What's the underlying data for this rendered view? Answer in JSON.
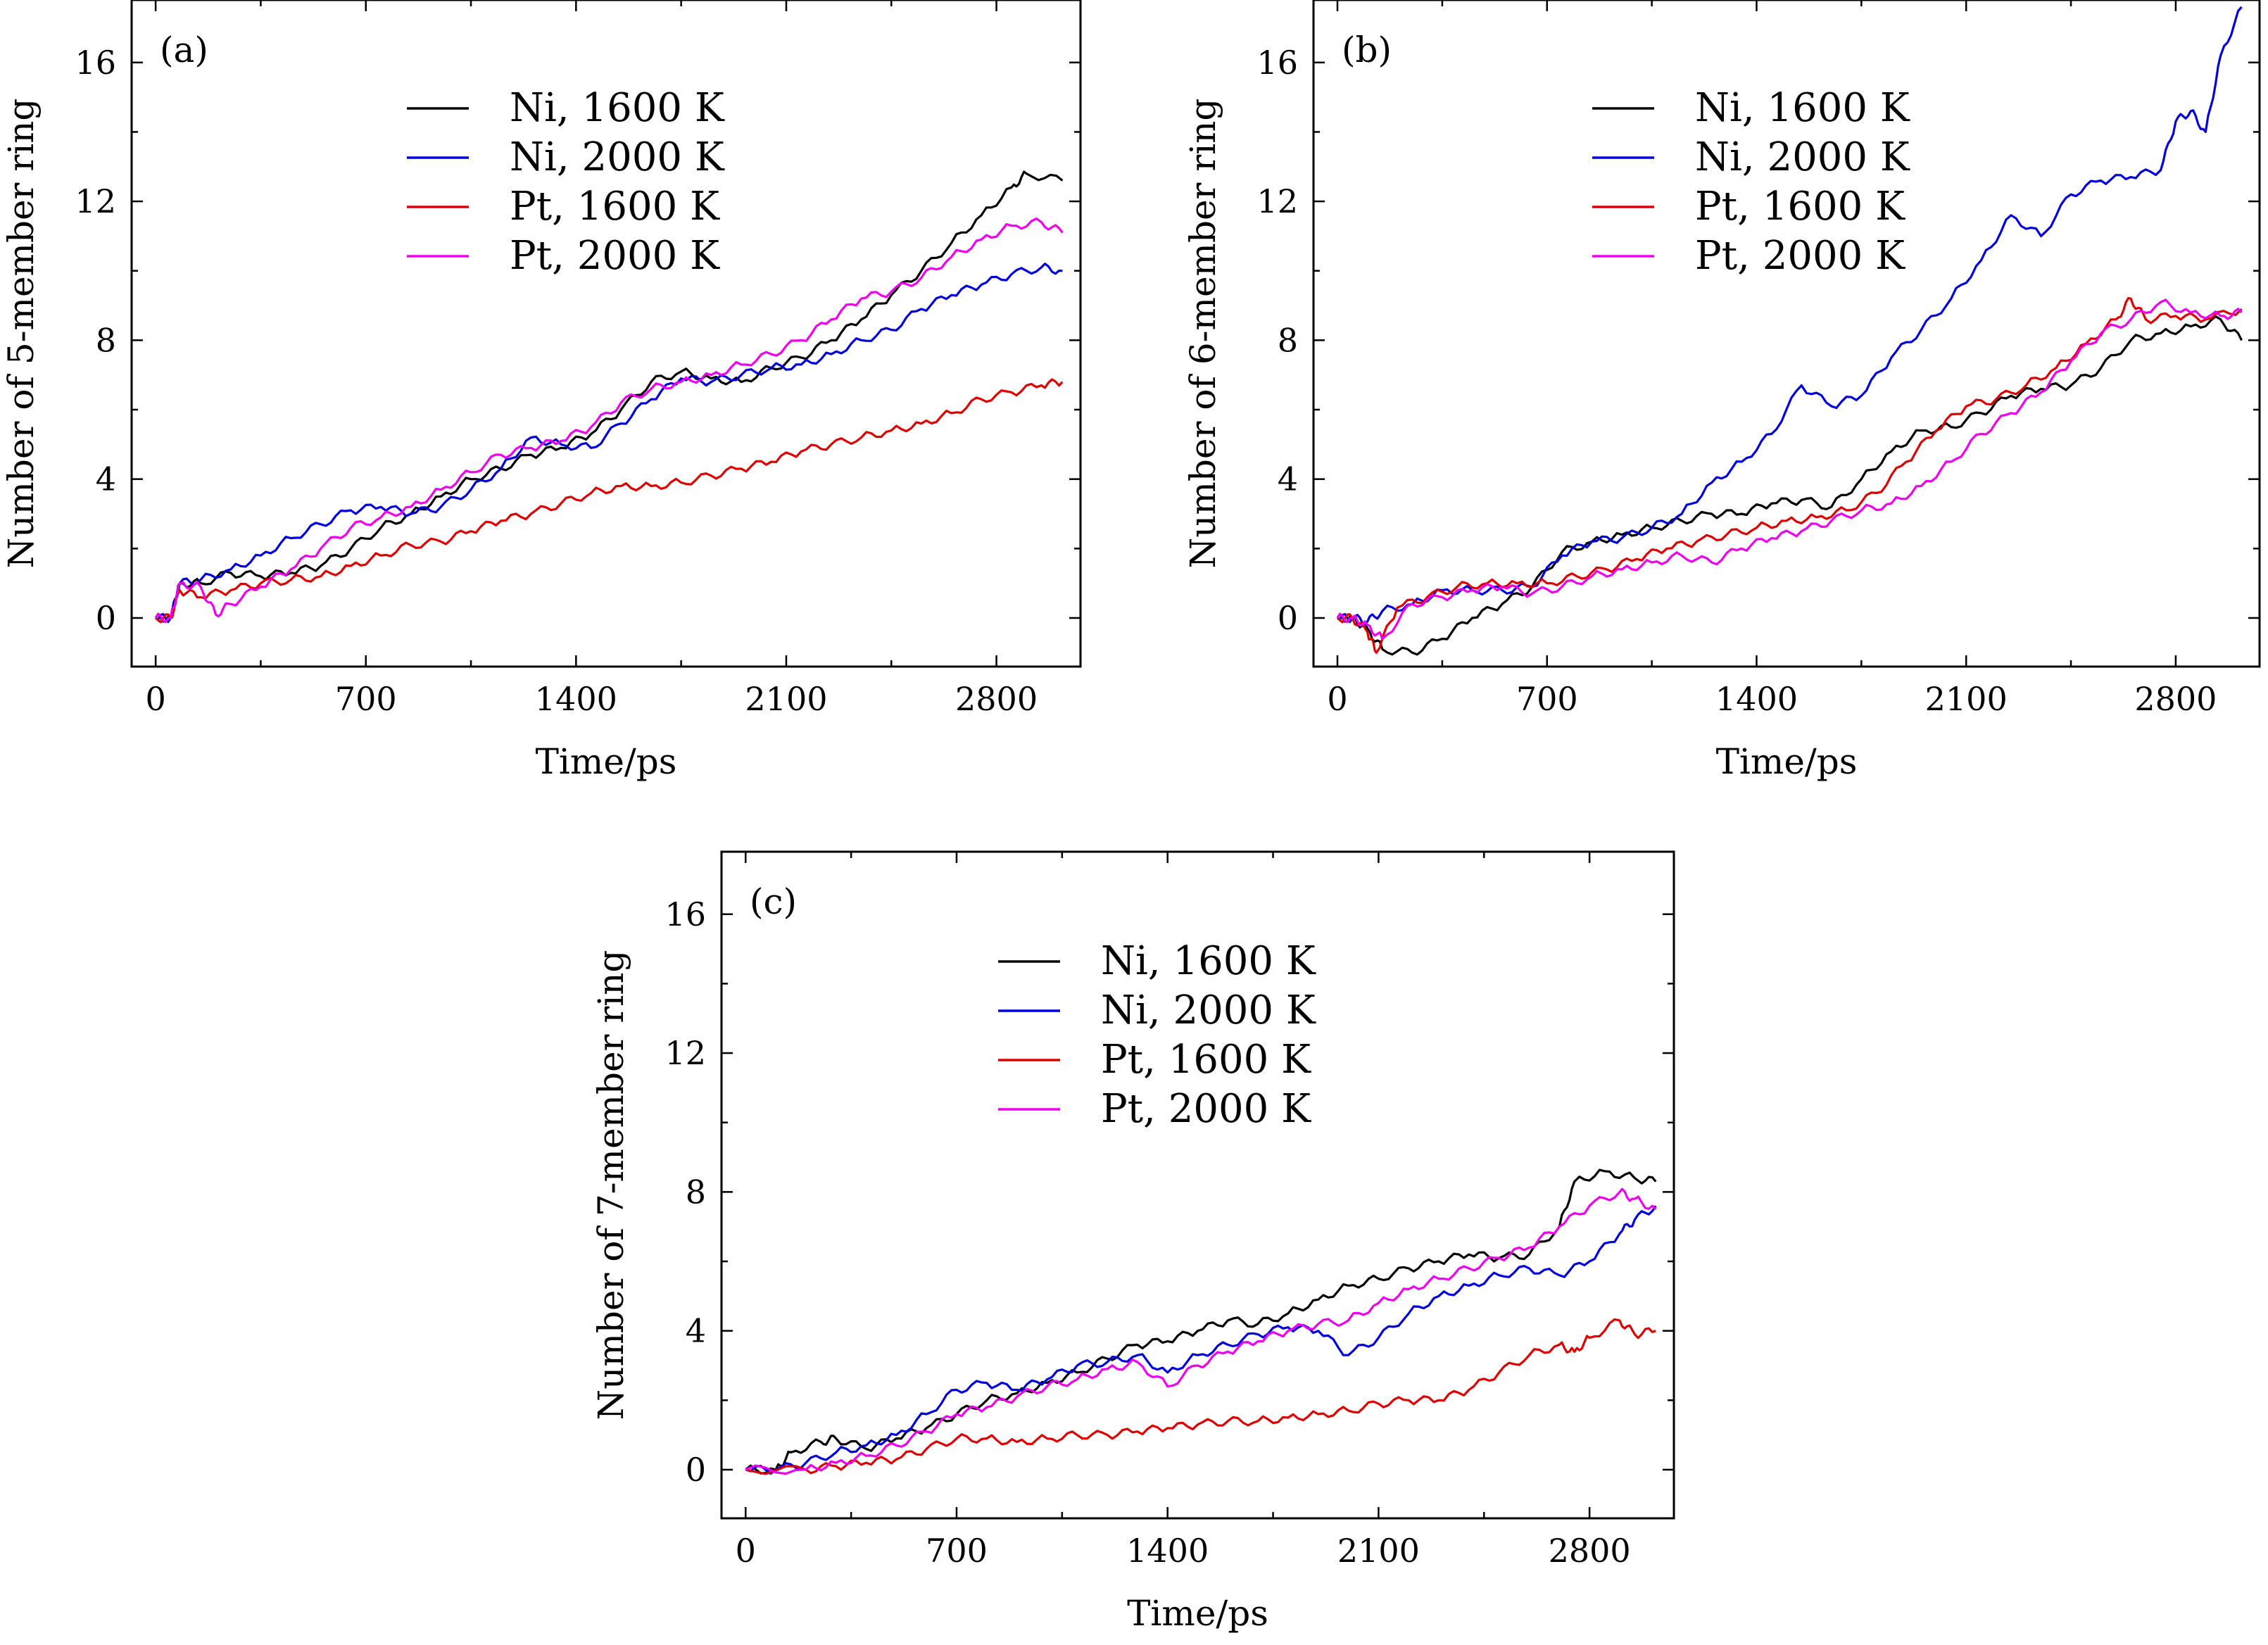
{
  "figure": {
    "colors": {
      "Ni, 1600 K": "#000000",
      "Ni, 2000 K": "#0000dd",
      "Pt, 1600 K": "#dd0000",
      "Pt, 2000 K": "#ee00ee"
    }
  },
  "chart_data": [
    {
      "type": "line",
      "panel_label": "(a)",
      "xlabel": "Time/ps",
      "ylabel": "Number of 5-member ring",
      "xlim": [
        -80,
        3080
      ],
      "ylim": [
        -1.4,
        17.8
      ],
      "xticks": [
        0,
        700,
        1400,
        2100,
        2800
      ],
      "yticks": [
        0,
        4,
        8,
        12,
        16
      ],
      "legend_position": "upper-left",
      "series": [
        {
          "name": "Ni, 1600 K",
          "color": "#000000",
          "x": [
            0,
            50,
            80,
            150,
            250,
            350,
            450,
            550,
            650,
            750,
            850,
            950,
            1050,
            1150,
            1250,
            1350,
            1450,
            1550,
            1650,
            1750,
            1850,
            1950,
            2050,
            2150,
            2250,
            2350,
            2450,
            2550,
            2650,
            2750,
            2850,
            2900,
            3020
          ],
          "y": [
            0,
            0,
            1,
            1,
            1.3,
            1.2,
            1.3,
            1.5,
            2.0,
            2.6,
            3.0,
            3.5,
            4.0,
            4.3,
            4.7,
            4.9,
            5.3,
            6.0,
            6.8,
            7.1,
            6.9,
            6.8,
            7.2,
            7.5,
            8.0,
            8.6,
            9.3,
            10.0,
            10.8,
            11.6,
            12.4,
            12.8,
            12.6
          ]
        },
        {
          "name": "Ni, 2000 K",
          "color": "#0000dd",
          "x": [
            0,
            50,
            80,
            150,
            250,
            350,
            450,
            550,
            650,
            750,
            850,
            950,
            1050,
            1150,
            1250,
            1350,
            1450,
            1550,
            1650,
            1750,
            1850,
            1950,
            2050,
            2150,
            2250,
            2350,
            2450,
            2550,
            2650,
            2750,
            2850,
            2950,
            3020
          ],
          "y": [
            0,
            0,
            1,
            1.1,
            1.4,
            1.8,
            2.3,
            2.7,
            3.1,
            3.2,
            3.0,
            3.2,
            3.7,
            4.3,
            5.2,
            5.0,
            4.9,
            5.6,
            6.3,
            6.9,
            6.8,
            7.0,
            7.2,
            7.3,
            7.6,
            8.0,
            8.3,
            8.9,
            9.3,
            9.6,
            9.9,
            10.1,
            10.0
          ]
        },
        {
          "name": "Pt, 1600 K",
          "color": "#dd0000",
          "x": [
            0,
            50,
            80,
            150,
            250,
            350,
            450,
            550,
            650,
            750,
            850,
            950,
            1050,
            1150,
            1250,
            1350,
            1450,
            1550,
            1650,
            1750,
            1850,
            1950,
            2050,
            2150,
            2250,
            2350,
            2450,
            2550,
            2650,
            2750,
            2850,
            2950,
            3020
          ],
          "y": [
            0,
            0,
            0.8,
            0.6,
            0.8,
            1.0,
            1.1,
            1.2,
            1.5,
            1.8,
            2.1,
            2.2,
            2.5,
            2.8,
            3.0,
            3.3,
            3.6,
            3.8,
            3.8,
            3.9,
            4.1,
            4.3,
            4.5,
            4.8,
            5.0,
            5.2,
            5.4,
            5.6,
            5.9,
            6.3,
            6.5,
            6.7,
            6.8
          ]
        },
        {
          "name": "Pt, 2000 K",
          "color": "#ee00ee",
          "x": [
            0,
            50,
            80,
            150,
            200,
            250,
            350,
            450,
            550,
            650,
            750,
            850,
            950,
            1050,
            1150,
            1250,
            1350,
            1450,
            1550,
            1650,
            1750,
            1850,
            1950,
            2050,
            2150,
            2250,
            2350,
            2450,
            2550,
            2650,
            2750,
            2850,
            2950,
            3020
          ],
          "y": [
            0,
            0,
            1,
            0.9,
            0.1,
            0.4,
            0.9,
            1.4,
            2.0,
            2.6,
            2.9,
            3.2,
            3.7,
            4.2,
            4.7,
            4.9,
            5.1,
            5.5,
            6.2,
            6.6,
            6.8,
            7.0,
            7.3,
            7.6,
            8.0,
            8.6,
            9.2,
            9.4,
            9.8,
            10.4,
            10.9,
            11.3,
            11.4,
            11.1
          ]
        }
      ]
    },
    {
      "type": "line",
      "panel_label": "(b)",
      "xlabel": "Time/ps",
      "ylabel": "Number of 6-member ring",
      "xlim": [
        -80,
        3080
      ],
      "ylim": [
        -1.4,
        17.8
      ],
      "xticks": [
        0,
        700,
        1400,
        2100,
        2800
      ],
      "yticks": [
        0,
        4,
        8,
        12,
        16
      ],
      "legend_position": "upper-center",
      "series": [
        {
          "name": "Ni, 1600 K",
          "color": "#000000",
          "x": [
            0,
            50,
            100,
            150,
            250,
            350,
            450,
            550,
            650,
            750,
            850,
            950,
            1050,
            1150,
            1250,
            1350,
            1450,
            1550,
            1650,
            1750,
            1850,
            1950,
            2050,
            2150,
            2250,
            2350,
            2450,
            2550,
            2650,
            2750,
            2850,
            2950,
            3020
          ],
          "y": [
            0,
            0,
            -0.3,
            -0.9,
            -1.0,
            -0.6,
            0.0,
            0.4,
            0.9,
            1.9,
            2.2,
            2.4,
            2.6,
            2.8,
            3.0,
            3.0,
            3.3,
            3.4,
            3.2,
            4.0,
            4.8,
            5.4,
            5.5,
            5.9,
            6.4,
            6.6,
            6.7,
            7.2,
            8.0,
            8.2,
            8.4,
            8.6,
            8.0
          ]
        },
        {
          "name": "Ni, 2000 K",
          "color": "#0000dd",
          "x": [
            0,
            50,
            100,
            150,
            250,
            350,
            450,
            550,
            650,
            750,
            850,
            950,
            1050,
            1150,
            1250,
            1350,
            1450,
            1550,
            1650,
            1750,
            1850,
            1950,
            2050,
            2150,
            2250,
            2350,
            2450,
            2550,
            2650,
            2750,
            2800,
            2850,
            2900,
            2950,
            3020
          ],
          "y": [
            0,
            0,
            -0.1,
            0.2,
            0.4,
            0.8,
            0.8,
            0.8,
            0.9,
            1.8,
            2.2,
            2.3,
            2.6,
            3.0,
            3.9,
            4.5,
            5.3,
            6.7,
            6.1,
            6.4,
            7.5,
            8.3,
            9.2,
            10.3,
            11.6,
            11.0,
            12.2,
            12.6,
            12.7,
            12.9,
            14.3,
            14.6,
            14.0,
            16.2,
            17.6
          ]
        },
        {
          "name": "Pt, 1600 K",
          "color": "#dd0000",
          "x": [
            0,
            50,
            100,
            130,
            200,
            300,
            400,
            500,
            600,
            700,
            800,
            900,
            1000,
            1100,
            1200,
            1300,
            1400,
            1500,
            1600,
            1700,
            1800,
            1900,
            2000,
            2100,
            2200,
            2300,
            2400,
            2500,
            2600,
            2650,
            2700,
            2800,
            2900,
            3020
          ],
          "y": [
            0,
            0,
            -0.4,
            -1.0,
            0.3,
            0.6,
            0.9,
            1.0,
            1.0,
            1.0,
            1.2,
            1.4,
            1.7,
            2.0,
            2.2,
            2.4,
            2.6,
            2.8,
            2.9,
            3.1,
            3.6,
            4.5,
            5.4,
            6.1,
            6.3,
            6.7,
            7.2,
            7.9,
            8.6,
            9.2,
            8.6,
            8.7,
            8.6,
            8.9
          ]
        },
        {
          "name": "Pt, 2000 K",
          "color": "#ee00ee",
          "x": [
            0,
            50,
            100,
            150,
            250,
            350,
            450,
            550,
            650,
            750,
            850,
            950,
            1050,
            1150,
            1250,
            1350,
            1450,
            1550,
            1650,
            1750,
            1850,
            1950,
            2050,
            2150,
            2250,
            2350,
            2450,
            2550,
            2650,
            2750,
            2850,
            2950,
            3020
          ],
          "y": [
            0,
            0,
            -0.2,
            -0.6,
            0.4,
            0.6,
            0.8,
            0.9,
            0.7,
            0.9,
            1.2,
            1.4,
            1.6,
            1.8,
            1.6,
            2.0,
            2.3,
            2.5,
            2.8,
            3.1,
            3.3,
            3.8,
            4.5,
            5.3,
            5.9,
            6.5,
            7.4,
            8.2,
            8.6,
            9.1,
            8.8,
            8.7,
            8.8
          ]
        }
      ]
    },
    {
      "type": "line",
      "panel_label": "(c)",
      "xlabel": "Time/ps",
      "ylabel": "Number of 7-member ring",
      "xlim": [
        -80,
        3080
      ],
      "ylim": [
        -1.4,
        17.8
      ],
      "xticks": [
        0,
        700,
        1400,
        2100,
        2800
      ],
      "yticks": [
        0,
        4,
        8,
        12,
        16
      ],
      "legend_position": "upper-center",
      "series": [
        {
          "name": "Ni, 1600 K",
          "color": "#000000",
          "x": [
            0,
            100,
            150,
            250,
            300,
            400,
            500,
            600,
            700,
            800,
            900,
            1000,
            1100,
            1200,
            1300,
            1400,
            1500,
            1600,
            1700,
            1800,
            1900,
            2000,
            2100,
            2200,
            2300,
            2400,
            2500,
            2600,
            2700,
            2750,
            2850,
            2950,
            3020
          ],
          "y": [
            0,
            0,
            0.5,
            0.8,
            0.9,
            0.6,
            0.9,
            1.2,
            1.6,
            2.0,
            2.2,
            2.5,
            2.8,
            3.2,
            3.6,
            3.7,
            4.0,
            4.3,
            4.2,
            4.5,
            4.9,
            5.3,
            5.5,
            5.8,
            6.0,
            6.2,
            6.1,
            6.2,
            7.0,
            8.3,
            8.6,
            8.4,
            8.3
          ]
        },
        {
          "name": "Ni, 2000 K",
          "color": "#0000dd",
          "x": [
            0,
            100,
            200,
            300,
            400,
            500,
            600,
            700,
            800,
            900,
            1000,
            1100,
            1200,
            1300,
            1400,
            1500,
            1600,
            1700,
            1800,
            1900,
            2000,
            2100,
            2200,
            2300,
            2400,
            2500,
            2600,
            2700,
            2800,
            2900,
            2950,
            3020
          ],
          "y": [
            0,
            0,
            0.2,
            0.5,
            0.7,
            1.0,
            1.6,
            2.3,
            2.5,
            2.3,
            2.6,
            3.0,
            3.1,
            3.3,
            2.8,
            3.3,
            3.6,
            3.9,
            4.1,
            4.0,
            3.3,
            3.8,
            4.5,
            5.0,
            5.3,
            5.6,
            5.8,
            5.6,
            6.0,
            6.8,
            7.2,
            7.6
          ]
        },
        {
          "name": "Pt, 1600 K",
          "color": "#dd0000",
          "x": [
            0,
            200,
            300,
            400,
            500,
            600,
            700,
            800,
            900,
            1000,
            1100,
            1200,
            1300,
            1400,
            1500,
            1600,
            1700,
            1800,
            1900,
            2000,
            2100,
            2200,
            2300,
            2400,
            2500,
            2600,
            2700,
            2750,
            2800,
            2900,
            2950,
            3020
          ],
          "y": [
            0,
            0,
            0.1,
            0.2,
            0.3,
            0.6,
            0.9,
            0.9,
            0.8,
            0.9,
            1.0,
            1.0,
            1.1,
            1.2,
            1.3,
            1.4,
            1.4,
            1.5,
            1.6,
            1.7,
            1.9,
            2.0,
            2.0,
            2.3,
            2.8,
            3.3,
            3.6,
            3.4,
            3.8,
            4.3,
            3.9,
            4.0
          ]
        },
        {
          "name": "Pt, 2000 K",
          "color": "#ee00ee",
          "x": [
            0,
            200,
            300,
            400,
            500,
            600,
            700,
            800,
            900,
            1000,
            1100,
            1200,
            1300,
            1400,
            1500,
            1600,
            1700,
            1800,
            1900,
            2000,
            2100,
            2200,
            2300,
            2400,
            2500,
            2600,
            2700,
            2800,
            2900,
            2950,
            3020
          ],
          "y": [
            0,
            0,
            0.2,
            0.4,
            0.7,
            1.1,
            1.6,
            1.8,
            2.1,
            2.4,
            2.6,
            2.9,
            3.1,
            2.4,
            3.0,
            3.4,
            3.7,
            4.0,
            4.2,
            4.3,
            4.8,
            5.2,
            5.5,
            5.8,
            6.1,
            6.4,
            7.0,
            7.6,
            8.0,
            7.8,
            7.5
          ]
        }
      ]
    }
  ]
}
